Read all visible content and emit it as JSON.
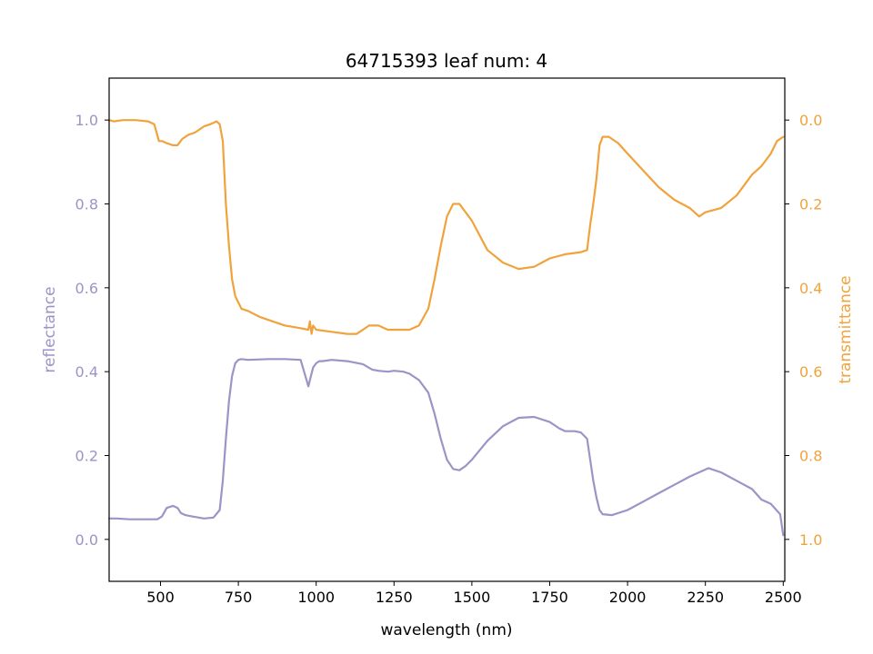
{
  "chart_data": {
    "type": "line",
    "title": "64715393 leaf num: 4",
    "xlabel": "wavelength (nm)",
    "ylabel_left": "reflectance",
    "ylabel_right": "transmittance",
    "xlim": [
      335,
      2505
    ],
    "ylim_left": [
      -0.1,
      1.1
    ],
    "ylim_right": [
      1.1,
      -0.1
    ],
    "right_axis_inverted": true,
    "grid": false,
    "x_ticks": [
      500,
      750,
      1000,
      1250,
      1500,
      1750,
      2000,
      2250,
      2500
    ],
    "y_ticks_left": [
      0.0,
      0.2,
      0.4,
      0.6,
      0.8,
      1.0
    ],
    "y_ticks_right": [
      0.0,
      0.2,
      0.4,
      0.6,
      0.8,
      1.0
    ],
    "colors": {
      "reflectance": "#9b94c6",
      "transmittance": "#f0a33c",
      "axes": "#000000"
    },
    "series": [
      {
        "key": "reflectance",
        "axis": "left",
        "x": [
          335,
          360,
          400,
          450,
          490,
          505,
          520,
          540,
          555,
          565,
          580,
          600,
          640,
          670,
          690,
          700,
          710,
          720,
          730,
          740,
          750,
          760,
          780,
          850,
          900,
          950,
          975,
          980,
          990,
          1000,
          1010,
          1020,
          1050,
          1100,
          1150,
          1180,
          1200,
          1230,
          1250,
          1280,
          1300,
          1330,
          1360,
          1380,
          1400,
          1420,
          1440,
          1460,
          1480,
          1500,
          1550,
          1600,
          1650,
          1700,
          1750,
          1780,
          1800,
          1830,
          1850,
          1870,
          1880,
          1890,
          1900,
          1910,
          1920,
          1950,
          2000,
          2050,
          2100,
          2150,
          2200,
          2230,
          2260,
          2300,
          2350,
          2400,
          2430,
          2460,
          2490,
          2500
        ],
        "y": [
          0.05,
          0.05,
          0.048,
          0.048,
          0.048,
          0.055,
          0.075,
          0.08,
          0.075,
          0.063,
          0.058,
          0.055,
          0.05,
          0.052,
          0.07,
          0.14,
          0.24,
          0.33,
          0.39,
          0.42,
          0.428,
          0.43,
          0.428,
          0.43,
          0.43,
          0.428,
          0.365,
          0.38,
          0.41,
          0.42,
          0.425,
          0.425,
          0.428,
          0.425,
          0.418,
          0.405,
          0.402,
          0.4,
          0.402,
          0.4,
          0.395,
          0.38,
          0.35,
          0.3,
          0.24,
          0.19,
          0.168,
          0.165,
          0.175,
          0.19,
          0.235,
          0.27,
          0.29,
          0.292,
          0.28,
          0.265,
          0.258,
          0.258,
          0.255,
          0.24,
          0.19,
          0.14,
          0.1,
          0.07,
          0.06,
          0.058,
          0.07,
          0.09,
          0.11,
          0.13,
          0.15,
          0.16,
          0.17,
          0.16,
          0.14,
          0.12,
          0.095,
          0.085,
          0.06,
          0.01
        ]
      },
      {
        "key": "transmittance",
        "axis": "right",
        "x": [
          335,
          350,
          380,
          420,
          460,
          480,
          495,
          505,
          520,
          540,
          555,
          570,
          590,
          610,
          640,
          660,
          680,
          690,
          700,
          710,
          720,
          730,
          740,
          760,
          780,
          820,
          860,
          900,
          940,
          975,
          980,
          985,
          990,
          1000,
          1050,
          1100,
          1130,
          1150,
          1170,
          1200,
          1230,
          1250,
          1280,
          1300,
          1330,
          1360,
          1380,
          1400,
          1420,
          1440,
          1460,
          1480,
          1500,
          1550,
          1600,
          1650,
          1700,
          1750,
          1800,
          1850,
          1870,
          1880,
          1890,
          1900,
          1910,
          1920,
          1940,
          1970,
          2000,
          2050,
          2100,
          2150,
          2200,
          2230,
          2250,
          2300,
          2350,
          2400,
          2430,
          2460,
          2480,
          2500
        ],
        "y": [
          0.0,
          0.003,
          0.0,
          0.0,
          0.003,
          0.01,
          0.05,
          0.05,
          0.055,
          0.06,
          0.06,
          0.045,
          0.035,
          0.03,
          0.015,
          0.01,
          0.003,
          0.01,
          0.05,
          0.2,
          0.3,
          0.38,
          0.42,
          0.45,
          0.455,
          0.47,
          0.48,
          0.49,
          0.495,
          0.5,
          0.48,
          0.51,
          0.49,
          0.5,
          0.505,
          0.51,
          0.51,
          0.5,
          0.49,
          0.49,
          0.5,
          0.5,
          0.5,
          0.5,
          0.49,
          0.45,
          0.38,
          0.3,
          0.23,
          0.2,
          0.2,
          0.22,
          0.24,
          0.31,
          0.34,
          0.355,
          0.35,
          0.33,
          0.32,
          0.315,
          0.31,
          0.25,
          0.2,
          0.14,
          0.06,
          0.04,
          0.04,
          0.055,
          0.08,
          0.12,
          0.16,
          0.19,
          0.21,
          0.23,
          0.22,
          0.21,
          0.18,
          0.13,
          0.11,
          0.08,
          0.05,
          0.04
        ]
      }
    ]
  }
}
